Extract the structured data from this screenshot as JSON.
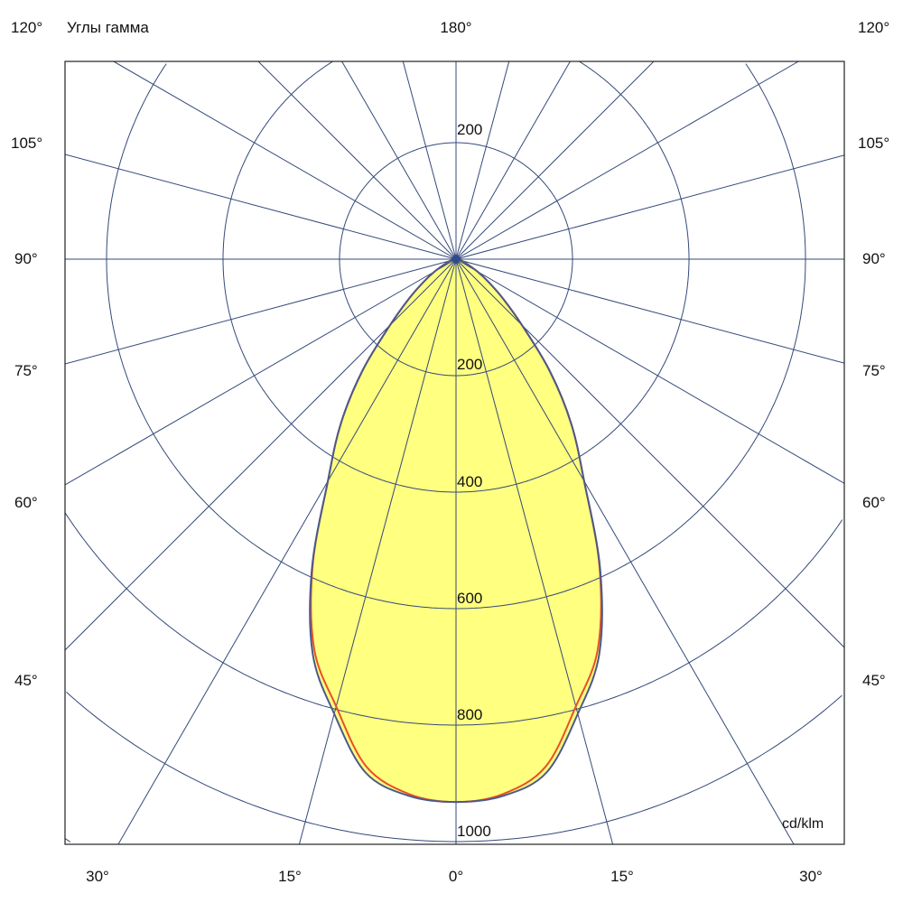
{
  "chart_data": {
    "type": "polar",
    "title": "Углы гамма",
    "unit": "cd/klm",
    "radial_ticks": [
      "200",
      "400",
      "600",
      "800",
      "1000"
    ],
    "top_ring_label": "200",
    "rings": [
      200,
      400,
      600,
      800,
      1000,
      1200
    ],
    "radial_line_step_deg": 15,
    "angle_labels": {
      "top": "180°",
      "side": [
        "120°",
        "105°",
        "90°",
        "75°",
        "60°",
        "45°"
      ],
      "bottom": [
        "30°",
        "15°",
        "0°",
        "15°",
        "30°"
      ]
    },
    "gamma_deg": [
      0,
      5,
      10,
      15,
      20,
      25,
      30,
      35,
      40,
      45,
      50,
      55,
      60,
      70,
      80,
      90
    ],
    "series": [
      {
        "values": [
          932,
          925,
          895,
          808,
          720,
          585,
          440,
          345,
          250,
          160,
          105,
          68,
          42,
          15,
          5,
          0
        ],
        "color": "#4a5a8a"
      },
      {
        "values": [
          932,
          922,
          885,
          795,
          712,
          583,
          440,
          345,
          250,
          160,
          105,
          68,
          42,
          15,
          5,
          0
        ],
        "color": "#e8502a"
      }
    ],
    "fill_color": "#ffff80",
    "grid_color": "#34497a",
    "symmetric": true
  }
}
